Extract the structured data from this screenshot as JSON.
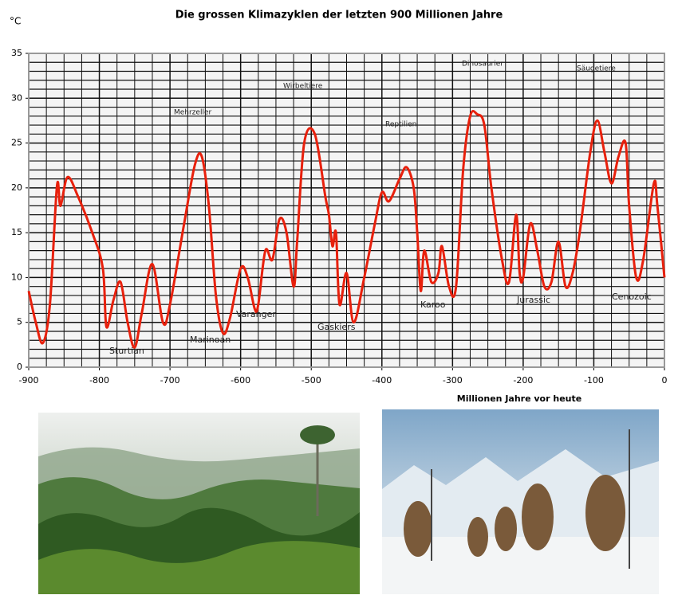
{
  "chart_data": {
    "type": "line",
    "title": "Die grossen Klimazyklen der letzten 900 Millionen Jahre",
    "y_label": "°C",
    "x_label": "Millionen Jahre vor heute",
    "xlim": [
      -900,
      0
    ],
    "ylim": [
      0,
      35
    ],
    "xticks": [
      -900,
      -800,
      -700,
      -600,
      -500,
      -400,
      -300,
      -200,
      -100,
      0
    ],
    "yticks": [
      0,
      5,
      10,
      15,
      20,
      25,
      30,
      35
    ],
    "x_minor_ticks": [
      -875,
      -850,
      -825,
      -775,
      -750,
      -725,
      -675,
      -650,
      -625,
      -575,
      -550,
      -525,
      -475,
      -450,
      -425,
      -375,
      -350,
      -325,
      -275,
      -250,
      -225,
      -175,
      -150,
      -125,
      -75,
      -50,
      -25
    ],
    "y_minor_ticks": [
      1,
      2,
      3,
      4,
      6,
      7,
      8,
      9,
      11,
      12,
      13,
      14,
      16,
      17,
      18,
      19,
      21,
      22,
      23,
      24,
      26,
      27,
      28,
      29,
      31,
      32,
      33,
      34
    ],
    "grid": true,
    "series": [
      {
        "color": "#e8200c",
        "x": [
          -900,
          -890,
          -880,
          -870,
          -860,
          -855,
          -845,
          -830,
          -810,
          -795,
          -790,
          -780,
          -770,
          -760,
          -750,
          -740,
          -725,
          -710,
          -700,
          -680,
          -665,
          -655,
          -645,
          -635,
          -625,
          -615,
          -600,
          -590,
          -580,
          -575,
          -565,
          -555,
          -545,
          -535,
          -525,
          -520,
          -510,
          -495,
          -480,
          -475,
          -470,
          -465,
          -460,
          -450,
          -440,
          -425,
          -410,
          -400,
          -390,
          -375,
          -365,
          -355,
          -350,
          -345,
          -340,
          -330,
          -320,
          -315,
          -305,
          -295,
          -285,
          -275,
          -265,
          -255,
          -245,
          -230,
          -220,
          -210,
          -205,
          -200,
          -190,
          -180,
          -170,
          -160,
          -150,
          -140,
          -130,
          -120,
          -105,
          -95,
          -85,
          -75,
          -65,
          -55,
          -50,
          -40,
          -30,
          -15,
          -10,
          0
        ],
        "values": [
          8.5,
          5,
          2.7,
          7,
          20.2,
          18,
          21.2,
          19,
          15,
          11,
          4.5,
          7.5,
          9.5,
          5,
          2.2,
          6,
          11.5,
          5,
          7,
          16,
          22.5,
          23.5,
          18,
          8,
          3.8,
          5.5,
          11,
          10,
          6.5,
          7,
          13,
          12,
          16.5,
          15,
          9,
          14,
          25,
          26,
          19,
          17,
          13.5,
          15,
          7,
          10.5,
          5,
          10,
          16,
          19.5,
          18.5,
          21,
          22.3,
          20,
          15,
          8.5,
          13,
          9.5,
          10.5,
          13.5,
          9,
          9,
          22,
          28,
          28.2,
          27,
          20,
          12,
          9.5,
          17,
          10.5,
          10,
          16,
          13,
          9,
          9.5,
          14,
          9,
          10.5,
          15,
          24,
          27.5,
          24,
          20.5,
          23.5,
          25,
          18,
          10,
          12,
          20.5,
          18,
          10
        ]
      }
    ],
    "annotations": [
      "Sturtian",
      "Marinoan",
      "Varanger",
      "Gaskiers",
      "Karoo",
      "Jurassic",
      "Cenozoic",
      "Mehrzeller",
      "Wirbeltiere",
      "Reptilien",
      "Dinosaurier",
      "Säugetiere"
    ]
  }
}
